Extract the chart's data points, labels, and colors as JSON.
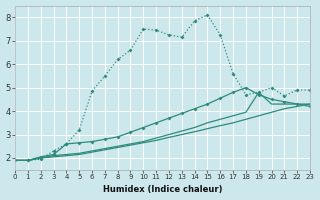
{
  "xlabel": "Humidex (Indice chaleur)",
  "background_color": "#cce8ed",
  "grid_color": "#ffffff",
  "line_color": "#2e8b7a",
  "xlim": [
    0,
    23
  ],
  "ylim": [
    1.5,
    8.5
  ],
  "xticks": [
    0,
    1,
    2,
    3,
    4,
    5,
    6,
    7,
    8,
    9,
    10,
    11,
    12,
    13,
    14,
    15,
    16,
    17,
    18,
    19,
    20,
    21,
    22,
    23
  ],
  "yticks": [
    2,
    3,
    4,
    5,
    6,
    7,
    8
  ],
  "line_dotted_x": [
    1,
    2,
    3,
    4,
    5,
    6,
    7,
    8,
    9,
    10,
    11,
    12,
    13,
    14,
    15,
    16,
    17,
    18,
    19,
    20,
    21,
    22,
    23
  ],
  "line_dotted_y": [
    1.9,
    1.95,
    2.3,
    2.6,
    3.2,
    4.85,
    5.5,
    6.2,
    6.6,
    7.5,
    7.45,
    7.25,
    7.15,
    7.85,
    8.1,
    7.25,
    5.6,
    4.7,
    4.8,
    5.0,
    4.65,
    4.9,
    4.9
  ],
  "line_solid_marker_x": [
    0,
    1,
    2,
    3,
    4,
    5,
    6,
    7,
    8,
    9,
    10,
    11,
    12,
    13,
    14,
    15,
    16,
    17,
    18,
    19,
    20,
    21,
    22,
    23
  ],
  "line_solid_marker_y": [
    1.9,
    1.9,
    2.05,
    2.15,
    2.6,
    2.65,
    2.7,
    2.8,
    2.9,
    3.1,
    3.3,
    3.5,
    3.7,
    3.9,
    4.1,
    4.3,
    4.55,
    4.8,
    5.0,
    4.7,
    4.5,
    4.4,
    4.3,
    4.2
  ],
  "line_plain1_x": [
    0,
    1,
    2,
    3,
    4,
    5,
    6,
    7,
    8,
    9,
    10,
    11,
    12,
    13,
    14,
    15,
    16,
    17,
    18,
    19,
    20,
    21,
    22,
    23
  ],
  "line_plain1_y": [
    1.9,
    1.9,
    2.0,
    2.05,
    2.1,
    2.15,
    2.25,
    2.35,
    2.45,
    2.55,
    2.65,
    2.75,
    2.88,
    3.0,
    3.12,
    3.25,
    3.38,
    3.5,
    3.65,
    3.8,
    3.95,
    4.1,
    4.2,
    4.3
  ],
  "line_plain2_x": [
    0,
    1,
    2,
    3,
    4,
    5,
    6,
    7,
    8,
    9,
    10,
    11,
    12,
    13,
    14,
    15,
    16,
    17,
    18,
    19,
    20,
    21,
    22,
    23
  ],
  "line_plain2_y": [
    1.9,
    1.9,
    2.0,
    2.1,
    2.15,
    2.2,
    2.3,
    2.4,
    2.5,
    2.6,
    2.7,
    2.85,
    3.0,
    3.15,
    3.3,
    3.5,
    3.65,
    3.8,
    3.95,
    4.8,
    4.3,
    4.3,
    4.3,
    4.3
  ]
}
